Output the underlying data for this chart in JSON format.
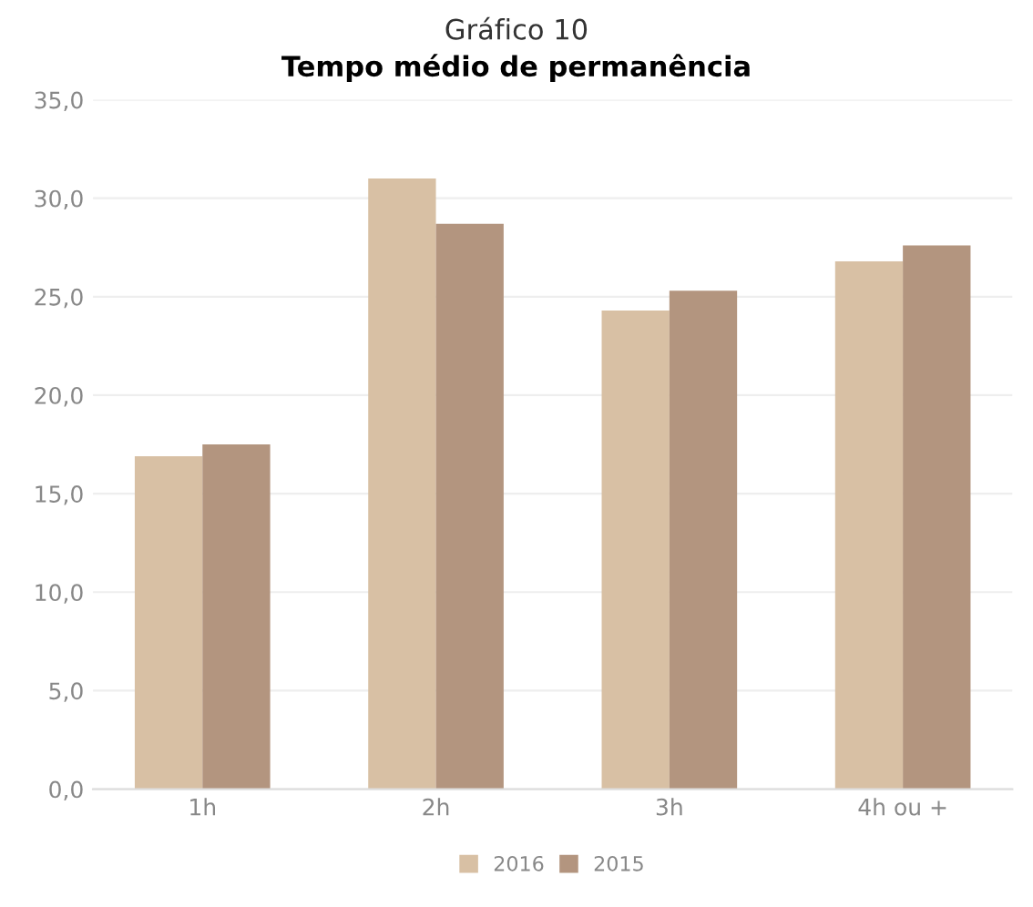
{
  "chart_data": {
    "type": "bar",
    "title": "Gráfico 10",
    "subtitle": "Tempo médio de permanência",
    "categories": [
      "1h",
      "2h",
      "3h",
      "4h ou +"
    ],
    "series": [
      {
        "name": "2016",
        "color": "#d8c0a4",
        "values": [
          16.9,
          31.0,
          24.3,
          26.8
        ]
      },
      {
        "name": "2015",
        "color": "#b3957f",
        "values": [
          17.5,
          28.7,
          25.3,
          27.6
        ]
      }
    ],
    "ylim": [
      0,
      35
    ],
    "yticks": [
      {
        "value": 0,
        "label": "0,0"
      },
      {
        "value": 5,
        "label": "5,0"
      },
      {
        "value": 10,
        "label": "10,0"
      },
      {
        "value": 15,
        "label": "15,0"
      },
      {
        "value": 20,
        "label": "20,0"
      },
      {
        "value": 25,
        "label": "25,0"
      },
      {
        "value": 30,
        "label": "30,0"
      },
      {
        "value": 35,
        "label": "35,0"
      }
    ],
    "grid": "y",
    "legend": "bottom"
  }
}
